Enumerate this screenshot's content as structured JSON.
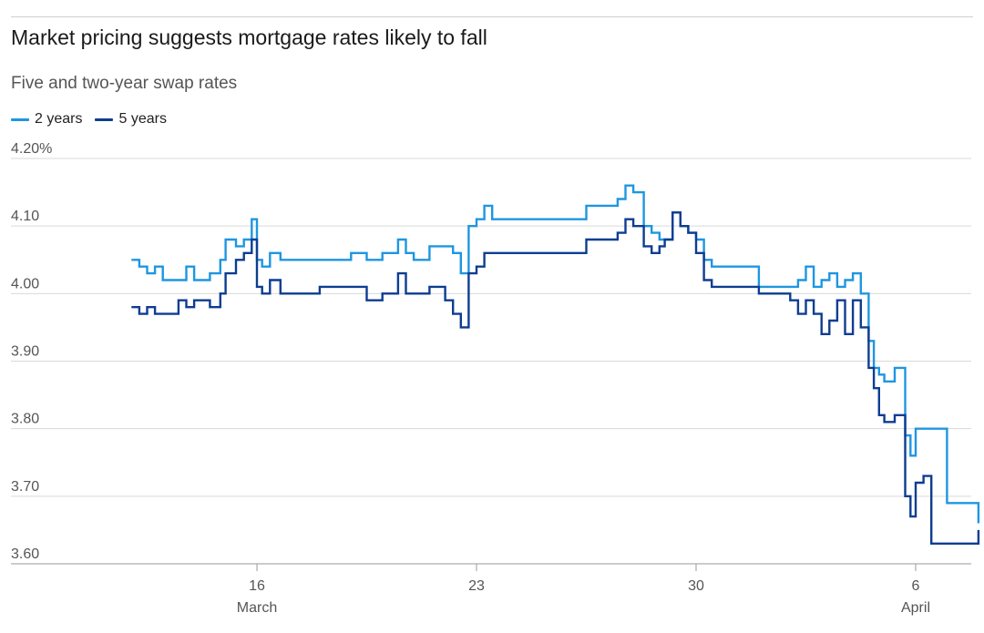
{
  "title": "Market pricing suggests mortgage rates likely to fall",
  "subtitle": "Five and two-year swap rates",
  "chart_data": {
    "type": "line",
    "title": "Market pricing suggests mortgage rates likely to fall",
    "subtitle": "Five and two-year swap rates",
    "xlabel": "",
    "ylabel": "",
    "ylim": [
      3.6,
      4.2
    ],
    "y_ticks": [
      "4.20%",
      "4.10",
      "4.00",
      "3.90",
      "3.80",
      "3.70",
      "3.60"
    ],
    "x_ticks": [
      {
        "label": "16",
        "sub": "March"
      },
      {
        "label": "23",
        "sub": ""
      },
      {
        "label": "30",
        "sub": ""
      },
      {
        "label": "6",
        "sub": "April"
      }
    ],
    "grid": true,
    "legend": "top-left",
    "series": [
      {
        "name": "2 years",
        "color": "#1e96e0",
        "points": [
          [
            "Mar 12 00:00",
            4.05
          ],
          [
            "Mar 12 06:00",
            4.04
          ],
          [
            "Mar 12 12:00",
            4.03
          ],
          [
            "Mar 12 18:00",
            4.04
          ],
          [
            "Mar 13 00:00",
            4.02
          ],
          [
            "Mar 13 12:00",
            4.02
          ],
          [
            "Mar 13 18:00",
            4.04
          ],
          [
            "Mar 14 00:00",
            4.02
          ],
          [
            "Mar 14 12:00",
            4.03
          ],
          [
            "Mar 14 20:00",
            4.05
          ],
          [
            "Mar 15 00:00",
            4.08
          ],
          [
            "Mar 15 08:00",
            4.07
          ],
          [
            "Mar 15 14:00",
            4.08
          ],
          [
            "Mar 15 20:00",
            4.11
          ],
          [
            "Mar 16 00:00",
            4.05
          ],
          [
            "Mar 16 04:00",
            4.04
          ],
          [
            "Mar 16 10:00",
            4.06
          ],
          [
            "Mar 16 18:00",
            4.05
          ],
          [
            "Mar 18 00:00",
            4.05
          ],
          [
            "Mar 19 00:00",
            4.06
          ],
          [
            "Mar 19 12:00",
            4.05
          ],
          [
            "Mar 20 00:00",
            4.06
          ],
          [
            "Mar 20 12:00",
            4.08
          ],
          [
            "Mar 20 18:00",
            4.06
          ],
          [
            "Mar 21 00:00",
            4.05
          ],
          [
            "Mar 21 12:00",
            4.07
          ],
          [
            "Mar 22 00:00",
            4.07
          ],
          [
            "Mar 22 06:00",
            4.06
          ],
          [
            "Mar 22 12:00",
            4.03
          ],
          [
            "Mar 22 18:00",
            4.1
          ],
          [
            "Mar 23 00:00",
            4.11
          ],
          [
            "Mar 23 06:00",
            4.13
          ],
          [
            "Mar 23 12:00",
            4.11
          ],
          [
            "Mar 24 00:00",
            4.11
          ],
          [
            "Mar 25 00:00",
            4.11
          ],
          [
            "Mar 26 00:00",
            4.11
          ],
          [
            "Mar 26 12:00",
            4.13
          ],
          [
            "Mar 27 00:00",
            4.13
          ],
          [
            "Mar 27 12:00",
            4.14
          ],
          [
            "Mar 27 18:00",
            4.16
          ],
          [
            "Mar 28 00:00",
            4.15
          ],
          [
            "Mar 28 08:00",
            4.1
          ],
          [
            "Mar 28 14:00",
            4.09
          ],
          [
            "Mar 28 20:00",
            4.08
          ],
          [
            "Mar 29 00:00",
            4.08
          ],
          [
            "Mar 29 06:00",
            4.12
          ],
          [
            "Mar 29 12:00",
            4.1
          ],
          [
            "Mar 29 18:00",
            4.09
          ],
          [
            "Mar 30 00:00",
            4.08
          ],
          [
            "Mar 30 06:00",
            4.05
          ],
          [
            "Mar 30 12:00",
            4.04
          ],
          [
            "Mar 31 00:00",
            4.04
          ],
          [
            "Apr 1 00:00",
            4.01
          ],
          [
            "Apr 2 00:00",
            4.01
          ],
          [
            "Apr 2 06:00",
            4.02
          ],
          [
            "Apr 2 12:00",
            4.04
          ],
          [
            "Apr 2 18:00",
            4.01
          ],
          [
            "Apr 3 00:00",
            4.02
          ],
          [
            "Apr 3 06:00",
            4.03
          ],
          [
            "Apr 3 12:00",
            4.01
          ],
          [
            "Apr 3 18:00",
            4.02
          ],
          [
            "Apr 4 00:00",
            4.03
          ],
          [
            "Apr 4 06:00",
            4.0
          ],
          [
            "Apr 4 12:00",
            3.93
          ],
          [
            "Apr 4 16:00",
            3.89
          ],
          [
            "Apr 4 20:00",
            3.88
          ],
          [
            "Apr 5 00:00",
            3.87
          ],
          [
            "Apr 5 08:00",
            3.89
          ],
          [
            "Apr 5 16:00",
            3.79
          ],
          [
            "Apr 5 20:00",
            3.76
          ],
          [
            "Apr 6 00:00",
            3.8
          ],
          [
            "Apr 6 12:00",
            3.8
          ],
          [
            "Apr 6 18:00",
            3.8
          ],
          [
            "Apr 7 00:00",
            3.69
          ],
          [
            "Apr 7 18:00",
            3.69
          ],
          [
            "Apr 8 00:00",
            3.66
          ]
        ]
      },
      {
        "name": "5 years",
        "color": "#0d3d91",
        "points": [
          [
            "Mar 12 00:00",
            3.98
          ],
          [
            "Mar 12 06:00",
            3.97
          ],
          [
            "Mar 12 12:00",
            3.98
          ],
          [
            "Mar 12 18:00",
            3.97
          ],
          [
            "Mar 13 00:00",
            3.97
          ],
          [
            "Mar 13 12:00",
            3.99
          ],
          [
            "Mar 13 18:00",
            3.98
          ],
          [
            "Mar 14 00:00",
            3.99
          ],
          [
            "Mar 14 12:00",
            3.98
          ],
          [
            "Mar 14 20:00",
            4.0
          ],
          [
            "Mar 15 00:00",
            4.03
          ],
          [
            "Mar 15 08:00",
            4.05
          ],
          [
            "Mar 15 14:00",
            4.06
          ],
          [
            "Mar 15 20:00",
            4.08
          ],
          [
            "Mar 16 00:00",
            4.01
          ],
          [
            "Mar 16 04:00",
            4.0
          ],
          [
            "Mar 16 10:00",
            4.02
          ],
          [
            "Mar 16 18:00",
            4.0
          ],
          [
            "Mar 18 00:00",
            4.01
          ],
          [
            "Mar 19 00:00",
            4.01
          ],
          [
            "Mar 19 12:00",
            3.99
          ],
          [
            "Mar 20 00:00",
            4.0
          ],
          [
            "Mar 20 12:00",
            4.03
          ],
          [
            "Mar 20 18:00",
            4.0
          ],
          [
            "Mar 21 00:00",
            4.0
          ],
          [
            "Mar 21 12:00",
            4.01
          ],
          [
            "Mar 22 00:00",
            3.99
          ],
          [
            "Mar 22 06:00",
            3.97
          ],
          [
            "Mar 22 12:00",
            3.95
          ],
          [
            "Mar 22 18:00",
            4.03
          ],
          [
            "Mar 23 00:00",
            4.04
          ],
          [
            "Mar 23 06:00",
            4.06
          ],
          [
            "Mar 23 12:00",
            4.06
          ],
          [
            "Mar 24 00:00",
            4.06
          ],
          [
            "Mar 25 00:00",
            4.06
          ],
          [
            "Mar 26 00:00",
            4.06
          ],
          [
            "Mar 26 12:00",
            4.08
          ],
          [
            "Mar 27 00:00",
            4.08
          ],
          [
            "Mar 27 12:00",
            4.09
          ],
          [
            "Mar 27 18:00",
            4.11
          ],
          [
            "Mar 28 00:00",
            4.1
          ],
          [
            "Mar 28 08:00",
            4.07
          ],
          [
            "Mar 28 14:00",
            4.06
          ],
          [
            "Mar 28 20:00",
            4.07
          ],
          [
            "Mar 29 00:00",
            4.08
          ],
          [
            "Mar 29 06:00",
            4.12
          ],
          [
            "Mar 29 12:00",
            4.1
          ],
          [
            "Mar 29 18:00",
            4.09
          ],
          [
            "Mar 30 00:00",
            4.06
          ],
          [
            "Mar 30 06:00",
            4.02
          ],
          [
            "Mar 30 12:00",
            4.01
          ],
          [
            "Mar 31 00:00",
            4.01
          ],
          [
            "Apr 1 00:00",
            4.0
          ],
          [
            "Apr 2 00:00",
            3.99
          ],
          [
            "Apr 2 06:00",
            3.97
          ],
          [
            "Apr 2 12:00",
            3.99
          ],
          [
            "Apr 2 18:00",
            3.97
          ],
          [
            "Apr 3 00:00",
            3.94
          ],
          [
            "Apr 3 06:00",
            3.96
          ],
          [
            "Apr 3 12:00",
            3.99
          ],
          [
            "Apr 3 18:00",
            3.94
          ],
          [
            "Apr 4 00:00",
            3.99
          ],
          [
            "Apr 4 06:00",
            3.95
          ],
          [
            "Apr 4 12:00",
            3.89
          ],
          [
            "Apr 4 16:00",
            3.86
          ],
          [
            "Apr 4 20:00",
            3.82
          ],
          [
            "Apr 5 00:00",
            3.81
          ],
          [
            "Apr 5 08:00",
            3.82
          ],
          [
            "Apr 5 16:00",
            3.7
          ],
          [
            "Apr 5 20:00",
            3.67
          ],
          [
            "Apr 6 00:00",
            3.72
          ],
          [
            "Apr 6 06:00",
            3.73
          ],
          [
            "Apr 6 12:00",
            3.63
          ],
          [
            "Apr 7 00:00",
            3.63
          ],
          [
            "Apr 7 18:00",
            3.63
          ],
          [
            "Apr 8 00:00",
            3.65
          ]
        ]
      }
    ]
  }
}
